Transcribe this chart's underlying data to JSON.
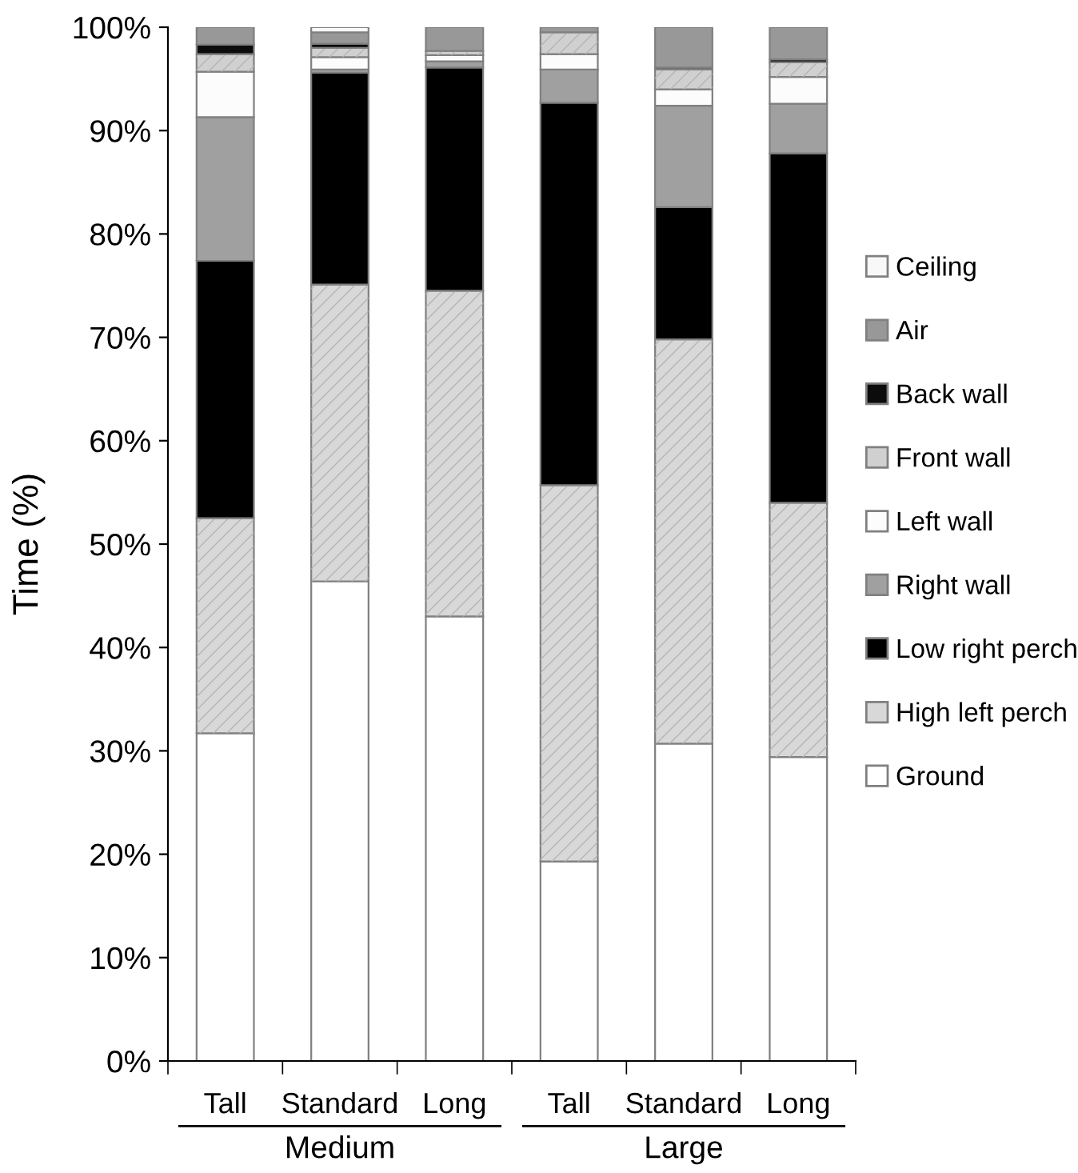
{
  "chart_data": {
    "type": "bar",
    "stacked": true,
    "ylabel": "Time (%)",
    "categories": [
      "Tall",
      "Standard",
      "Long",
      "Tall",
      "Standard",
      "Long"
    ],
    "annotations": [
      "Medium",
      "Large"
    ],
    "series": [
      {
        "name": "Ground",
        "color": "#ffffff",
        "values": [
          31.7,
          46.4,
          43.0,
          19.3,
          30.7,
          29.4
        ]
      },
      {
        "name": "High left perch",
        "color": "#d8d8d8",
        "values": [
          20.8,
          28.7,
          31.5,
          36.4,
          39.1,
          24.6
        ]
      },
      {
        "name": "Low right perch",
        "color": "#000000",
        "values": [
          24.9,
          20.5,
          21.6,
          37.0,
          12.8,
          33.8
        ]
      },
      {
        "name": "Right wall",
        "color": "#a0a0a0",
        "values": [
          13.9,
          0.3,
          0.6,
          3.2,
          9.8,
          4.8
        ]
      },
      {
        "name": "Left wall",
        "color": "#fcfcfc",
        "values": [
          4.4,
          1.2,
          0.6,
          1.5,
          1.6,
          2.6
        ]
      },
      {
        "name": "Front wall",
        "color": "#d0d0d0",
        "values": [
          1.7,
          0.9,
          0.4,
          2.1,
          1.9,
          1.4
        ]
      },
      {
        "name": "Back wall",
        "color": "#0c0c0c",
        "values": [
          0.9,
          0.4,
          0,
          0,
          0.2,
          0.3
        ]
      },
      {
        "name": "Air",
        "color": "#989898",
        "values": [
          1.7,
          1.1,
          2.3,
          0.5,
          3.9,
          3.1
        ]
      },
      {
        "name": "Ceiling",
        "color": "#f8f8f8",
        "values": [
          0,
          0.5,
          0,
          0,
          0,
          0
        ]
      }
    ],
    "ylim": [
      0,
      100
    ],
    "yticks": [
      {
        "value": 0,
        "label": "0%"
      },
      {
        "value": 10,
        "label": "10%"
      },
      {
        "value": 20,
        "label": "20%"
      },
      {
        "value": 30,
        "label": "30%"
      },
      {
        "value": 40,
        "label": "40%"
      },
      {
        "value": 50,
        "label": "50%"
      },
      {
        "value": 60,
        "label": "60%"
      },
      {
        "value": 70,
        "label": "70%"
      },
      {
        "value": 80,
        "label": "80%"
      },
      {
        "value": 90,
        "label": "90%"
      },
      {
        "value": 100,
        "label": "100%"
      }
    ],
    "grid": false,
    "legend": "right"
  }
}
